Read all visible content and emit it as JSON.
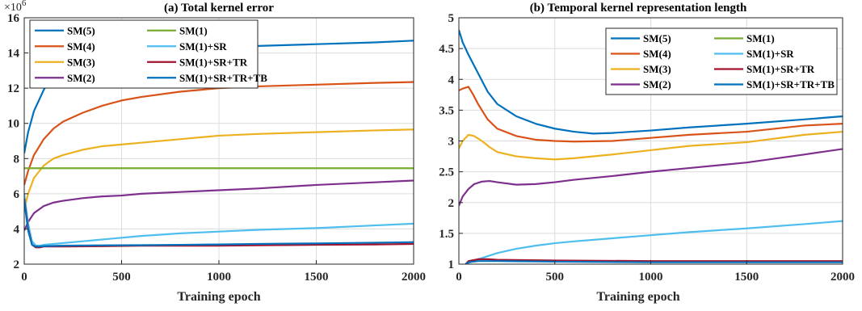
{
  "chart_data": [
    {
      "type": "line",
      "title": "(a) Total kernel error",
      "xlabel": "Training epoch",
      "ylabel": "",
      "y_multiplier_base": "×10",
      "y_multiplier_exponent": "6",
      "xlim": [
        0,
        2000
      ],
      "ylim": [
        2,
        16
      ],
      "xticks": [
        0,
        500,
        1000,
        1500,
        2000
      ],
      "yticks": [
        2,
        4,
        6,
        8,
        10,
        12,
        14,
        16
      ],
      "grid": true,
      "legend_position": "top-left",
      "series": [
        {
          "name": "SM(5)",
          "color": "#0072BD",
          "x": [
            0,
            20,
            50,
            100,
            150,
            200,
            300,
            400,
            500,
            600,
            800,
            1000,
            1200,
            1500,
            1800,
            2000
          ],
          "y": [
            8.3,
            9.5,
            10.7,
            11.9,
            12.8,
            13.3,
            13.7,
            13.9,
            14.0,
            14.1,
            14.2,
            14.3,
            14.4,
            14.5,
            14.6,
            14.7
          ]
        },
        {
          "name": "SM(4)",
          "color": "#D95319",
          "x": [
            0,
            20,
            50,
            100,
            150,
            200,
            300,
            400,
            500,
            600,
            800,
            1000,
            1200,
            1500,
            1800,
            2000
          ],
          "y": [
            6.5,
            7.3,
            8.2,
            9.1,
            9.7,
            10.1,
            10.6,
            11.0,
            11.3,
            11.5,
            11.8,
            12.0,
            12.1,
            12.2,
            12.3,
            12.35
          ]
        },
        {
          "name": "SM(3)",
          "color": "#EDB120",
          "x": [
            0,
            20,
            50,
            100,
            150,
            200,
            300,
            400,
            500,
            600,
            800,
            1000,
            1200,
            1500,
            1800,
            2000
          ],
          "y": [
            5.1,
            6.0,
            6.9,
            7.6,
            8.0,
            8.2,
            8.5,
            8.7,
            8.8,
            8.9,
            9.1,
            9.3,
            9.4,
            9.5,
            9.6,
            9.65
          ]
        },
        {
          "name": "SM(2)",
          "color": "#7E2F8E",
          "x": [
            0,
            20,
            50,
            100,
            150,
            200,
            300,
            400,
            500,
            600,
            800,
            1000,
            1200,
            1500,
            1800,
            2000
          ],
          "y": [
            3.9,
            4.4,
            4.9,
            5.3,
            5.5,
            5.6,
            5.75,
            5.85,
            5.9,
            6.0,
            6.1,
            6.2,
            6.3,
            6.5,
            6.65,
            6.75
          ]
        },
        {
          "name": "SM(1)",
          "color": "#77AC30",
          "x": [
            0,
            2000
          ],
          "y": [
            7.45,
            7.45
          ]
        },
        {
          "name": "SM(1)+SR",
          "color": "#4DBEEE",
          "x": [
            0,
            20,
            40,
            60,
            80,
            100,
            150,
            200,
            300,
            400,
            500,
            600,
            800,
            1000,
            1200,
            1500,
            1800,
            2000
          ],
          "y": [
            6.0,
            4.3,
            3.3,
            3.05,
            3.05,
            3.1,
            3.15,
            3.2,
            3.3,
            3.4,
            3.5,
            3.6,
            3.75,
            3.85,
            3.95,
            4.05,
            4.2,
            4.3
          ]
        },
        {
          "name": "SM(1)+SR+TR",
          "color": "#A2142F",
          "x": [
            0,
            20,
            40,
            60,
            80,
            100,
            150,
            200,
            400,
            600,
            800,
            1000,
            1200,
            1500,
            1800,
            2000
          ],
          "y": [
            5.7,
            4.0,
            3.1,
            2.95,
            2.95,
            3.0,
            3.0,
            3.0,
            3.02,
            3.05,
            3.05,
            3.05,
            3.07,
            3.1,
            3.12,
            3.15
          ]
        },
        {
          "name": "SM(1)+SR+TR+TB",
          "color": "#0072BD",
          "x": [
            0,
            20,
            40,
            60,
            80,
            100,
            150,
            200,
            400,
            600,
            800,
            1000,
            1200,
            1500,
            1800,
            2000
          ],
          "y": [
            5.6,
            3.9,
            3.1,
            3.0,
            3.0,
            3.02,
            3.04,
            3.05,
            3.07,
            3.08,
            3.1,
            3.12,
            3.15,
            3.18,
            3.22,
            3.25
          ]
        }
      ]
    },
    {
      "type": "line",
      "title": "(b) Temporal kernel representation length",
      "xlabel": "Training epoch",
      "ylabel": "",
      "xlim": [
        0,
        2000
      ],
      "ylim": [
        1,
        5
      ],
      "xticks": [
        0,
        500,
        1000,
        1500,
        2000
      ],
      "yticks": [
        1,
        1.5,
        2,
        2.5,
        3,
        3.5,
        4,
        4.5,
        5
      ],
      "grid": true,
      "legend_position": "top-right",
      "series": [
        {
          "name": "SM(5)",
          "color": "#0072BD",
          "x": [
            0,
            20,
            50,
            100,
            150,
            200,
            300,
            400,
            500,
            600,
            700,
            800,
            1000,
            1200,
            1500,
            1800,
            2000
          ],
          "y": [
            4.8,
            4.6,
            4.4,
            4.1,
            3.8,
            3.6,
            3.4,
            3.28,
            3.2,
            3.15,
            3.12,
            3.13,
            3.17,
            3.22,
            3.28,
            3.35,
            3.4
          ]
        },
        {
          "name": "SM(4)",
          "color": "#D95319",
          "x": [
            0,
            20,
            50,
            75,
            100,
            150,
            200,
            300,
            400,
            500,
            600,
            800,
            1000,
            1200,
            1500,
            1800,
            2000
          ],
          "y": [
            3.82,
            3.85,
            3.88,
            3.75,
            3.6,
            3.35,
            3.2,
            3.08,
            3.02,
            3.0,
            2.99,
            3.0,
            3.05,
            3.1,
            3.15,
            3.25,
            3.28
          ]
        },
        {
          "name": "SM(3)",
          "color": "#EDB120",
          "x": [
            0,
            20,
            50,
            80,
            120,
            160,
            200,
            300,
            400,
            500,
            600,
            800,
            1000,
            1200,
            1500,
            1800,
            2000
          ],
          "y": [
            2.88,
            3.0,
            3.1,
            3.08,
            3.0,
            2.9,
            2.82,
            2.75,
            2.72,
            2.7,
            2.72,
            2.78,
            2.85,
            2.92,
            2.98,
            3.1,
            3.15
          ]
        },
        {
          "name": "SM(2)",
          "color": "#7E2F8E",
          "x": [
            0,
            20,
            50,
            80,
            120,
            160,
            200,
            300,
            400,
            500,
            600,
            800,
            1000,
            1200,
            1500,
            1800,
            2000
          ],
          "y": [
            1.95,
            2.1,
            2.22,
            2.3,
            2.34,
            2.35,
            2.33,
            2.29,
            2.3,
            2.33,
            2.37,
            2.43,
            2.5,
            2.56,
            2.65,
            2.78,
            2.87
          ]
        },
        {
          "name": "SM(1)",
          "color": "#77AC30",
          "x": [
            0,
            2000
          ],
          "y": [
            0.98,
            0.98
          ]
        },
        {
          "name": "SM(1)+SR",
          "color": "#4DBEEE",
          "x": [
            0,
            30,
            50,
            100,
            200,
            300,
            400,
            500,
            600,
            800,
            1000,
            1200,
            1500,
            1800,
            2000
          ],
          "y": [
            0.98,
            0.98,
            1.02,
            1.08,
            1.18,
            1.25,
            1.3,
            1.34,
            1.37,
            1.42,
            1.47,
            1.52,
            1.58,
            1.65,
            1.7
          ]
        },
        {
          "name": "SM(1)+SR+TR",
          "color": "#A2142F",
          "x": [
            0,
            30,
            50,
            100,
            150,
            200,
            500,
            1000,
            1500,
            2000
          ],
          "y": [
            0.98,
            0.98,
            1.05,
            1.08,
            1.08,
            1.07,
            1.06,
            1.05,
            1.05,
            1.05
          ]
        },
        {
          "name": "SM(1)+SR+TR+TB",
          "color": "#0072BD",
          "x": [
            0,
            30,
            50,
            100,
            150,
            200,
            500,
            1000,
            1500,
            2000
          ],
          "y": [
            0.98,
            0.98,
            1.03,
            1.05,
            1.05,
            1.05,
            1.04,
            1.03,
            1.03,
            1.03
          ]
        }
      ]
    }
  ]
}
